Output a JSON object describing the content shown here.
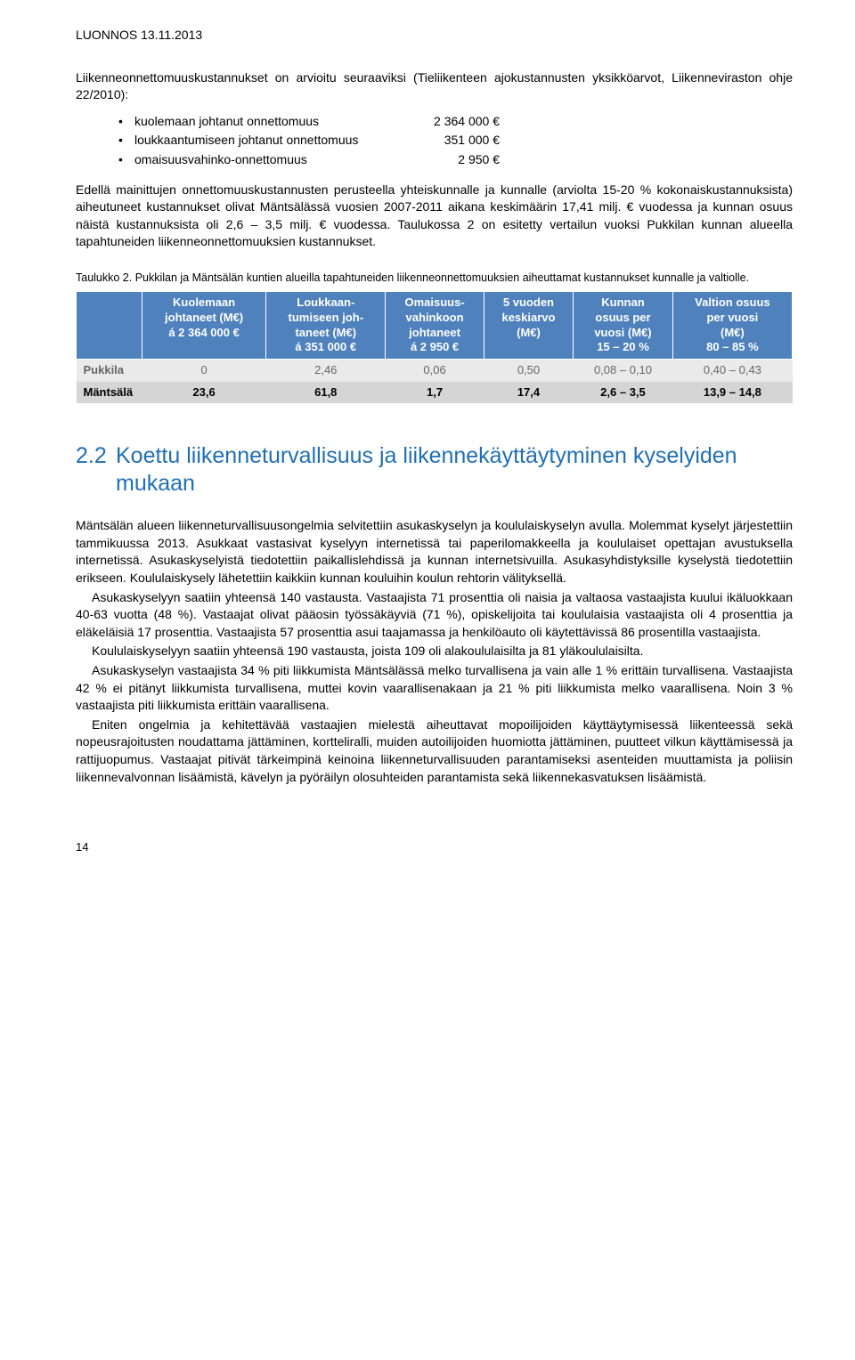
{
  "header": {
    "draft": "LUONNOS 13.11.2013"
  },
  "intro": "Liikenneonnettomuuskustannukset on arvioitu seuraaviksi (Tieliikenteen ajokustannusten yksikköarvot, Liikenneviraston ohje 22/2010):",
  "bullets": [
    {
      "label": "kuolemaan johtanut onnettomuus",
      "value": "2 364 000 €"
    },
    {
      "label": "loukkaantumiseen johtanut onnettomuus",
      "value": "351 000 €"
    },
    {
      "label": "omaisuusvahinko-onnettomuus",
      "value": "2 950 €"
    }
  ],
  "body1": "Edellä mainittujen onnettomuuskustannusten perusteella yhteiskunnalle ja kunnalle (arviolta 15-20 % kokonaiskustannuksista) aiheutuneet kustannukset olivat Mäntsälässä vuosien 2007-2011 aikana keskimäärin 17,41 milj. € vuodessa ja kunnan osuus näistä kustannuksista oli 2,6 – 3,5 milj. € vuodessa. Taulukossa 2 on esitetty vertailun vuoksi Pukkilan kunnan alueella tapahtuneiden liikenneonnettomuuksien kustannukset.",
  "table": {
    "caption": "Taulukko 2. Pukkilan ja Mäntsälän kuntien alueilla tapahtuneiden liikenneonnettomuuksien aiheuttamat kustannukset kunnalle ja valtiolle.",
    "headers": [
      "",
      "Kuolemaan johtaneet (M€) á 2 364 000 €",
      "Loukkaan-tumiseen joh-taneet (M€) á 351 000 €",
      "Omaisuus-vahinkoon johtaneet á 2 950 €",
      "5 vuoden keskiarvo (M€)",
      "Kunnan osuus per vuosi (M€) 15 – 20 %",
      "Valtion osuus per vuosi (M€) 80 – 85 %"
    ],
    "header_lines": [
      [
        ""
      ],
      [
        "Kuolemaan",
        "johtaneet (M€)",
        "á 2 364 000 €"
      ],
      [
        "Loukkaan-",
        "tumiseen joh-",
        "taneet (M€)",
        "á 351 000 €"
      ],
      [
        "Omaisuus-",
        "vahinkoon",
        "johtaneet",
        "á 2 950 €"
      ],
      [
        "5 vuoden",
        "keskiarvo",
        "(M€)"
      ],
      [
        "Kunnan",
        "osuus per",
        "vuosi (M€)",
        "15 – 20 %"
      ],
      [
        "Valtion osuus",
        "per vuosi",
        "(M€)",
        "80 – 85 %"
      ]
    ],
    "rows": [
      {
        "label": "Pukkila",
        "cells": [
          "0",
          "2,46",
          "0,06",
          "0,50",
          "0,08 – 0,10",
          "0,40 – 0,43"
        ]
      },
      {
        "label": "Mäntsälä",
        "cells": [
          "23,6",
          "61,8",
          "1,7",
          "17,4",
          "2,6 – 3,5",
          "13,9 – 14,8"
        ]
      }
    ],
    "colors": {
      "header_bg": "#4f81bd",
      "header_fg": "#ffffff",
      "row1_bg": "#eaeaea",
      "row2_bg": "#d5d5d5",
      "row1_fg": "#666666",
      "row2_fg": "#000000"
    }
  },
  "section": {
    "number": "2.2",
    "title": "Koettu liikenneturvallisuus ja liikennekäyttäytyminen kyselyiden mukaan"
  },
  "paras": {
    "p1": "Mäntsälän alueen liikenneturvallisuusongelmia selvitettiin asukaskyselyn ja koululaiskyselyn avulla. Molemmat kyselyt järjestettiin tammikuussa 2013. Asukkaat vastasivat kyselyyn internetissä tai paperilomakkeella ja koululaiset opettajan avustuksella internetissä. Asukaskyselyistä tiedotettiin paikallislehdissä ja kunnan internetsivuilla. Asukasyhdistyksille kyselystä tiedotettiin erikseen. Koululaiskysely lähetettiin kaikkiin kunnan kouluihin koulun rehtorin välityksellä.",
    "p2": "Asukaskyselyyn saatiin yhteensä 140 vastausta. Vastaajista 71 prosenttia oli naisia ja valtaosa vastaajista kuului ikäluokkaan 40-63 vuotta (48 %). Vastaajat olivat pääosin työssäkäyviä (71 %), opiskelijoita tai koululaisia vastaajista oli 4 prosenttia ja eläkeläisiä 17 prosenttia. Vastaajista 57 prosenttia asui taajamassa ja henkilöauto oli käytettävissä 86 prosentilla vastaajista.",
    "p3": "Koululaiskyselyyn saatiin yhteensä 190 vastausta, joista 109 oli alakoululaisilta ja 81 yläkoululaisilta.",
    "p4": "Asukaskyselyn vastaajista 34 % piti liikkumista Mäntsälässä melko turvallisena ja vain alle 1 % erittäin turvallisena. Vastaajista 42 % ei pitänyt liikkumista turvallisena, muttei kovin vaarallisenakaan ja 21 % piti liikkumista melko vaarallisena. Noin 3 % vastaajista piti liikkumista erittäin vaarallisena.",
    "p5": "Eniten ongelmia ja kehitettävää vastaajien mielestä aiheuttavat mopoilijoiden käyttäytymisessä liikenteessä sekä nopeusrajoitusten noudattama jättäminen, kortteliralli, muiden autoilijoiden huomiotta jättäminen, puutteet vilkun käyttämisessä ja rattijuopumus. Vastaajat pitivät tärkeimpinä keinoina liikenneturvallisuuden parantamiseksi asenteiden muuttamista ja poliisin liikennevalvonnan lisäämistä, kävelyn ja pyöräilyn olosuhteiden parantamista sekä liikennekasvatuksen lisäämistä."
  },
  "pageNumber": "14"
}
